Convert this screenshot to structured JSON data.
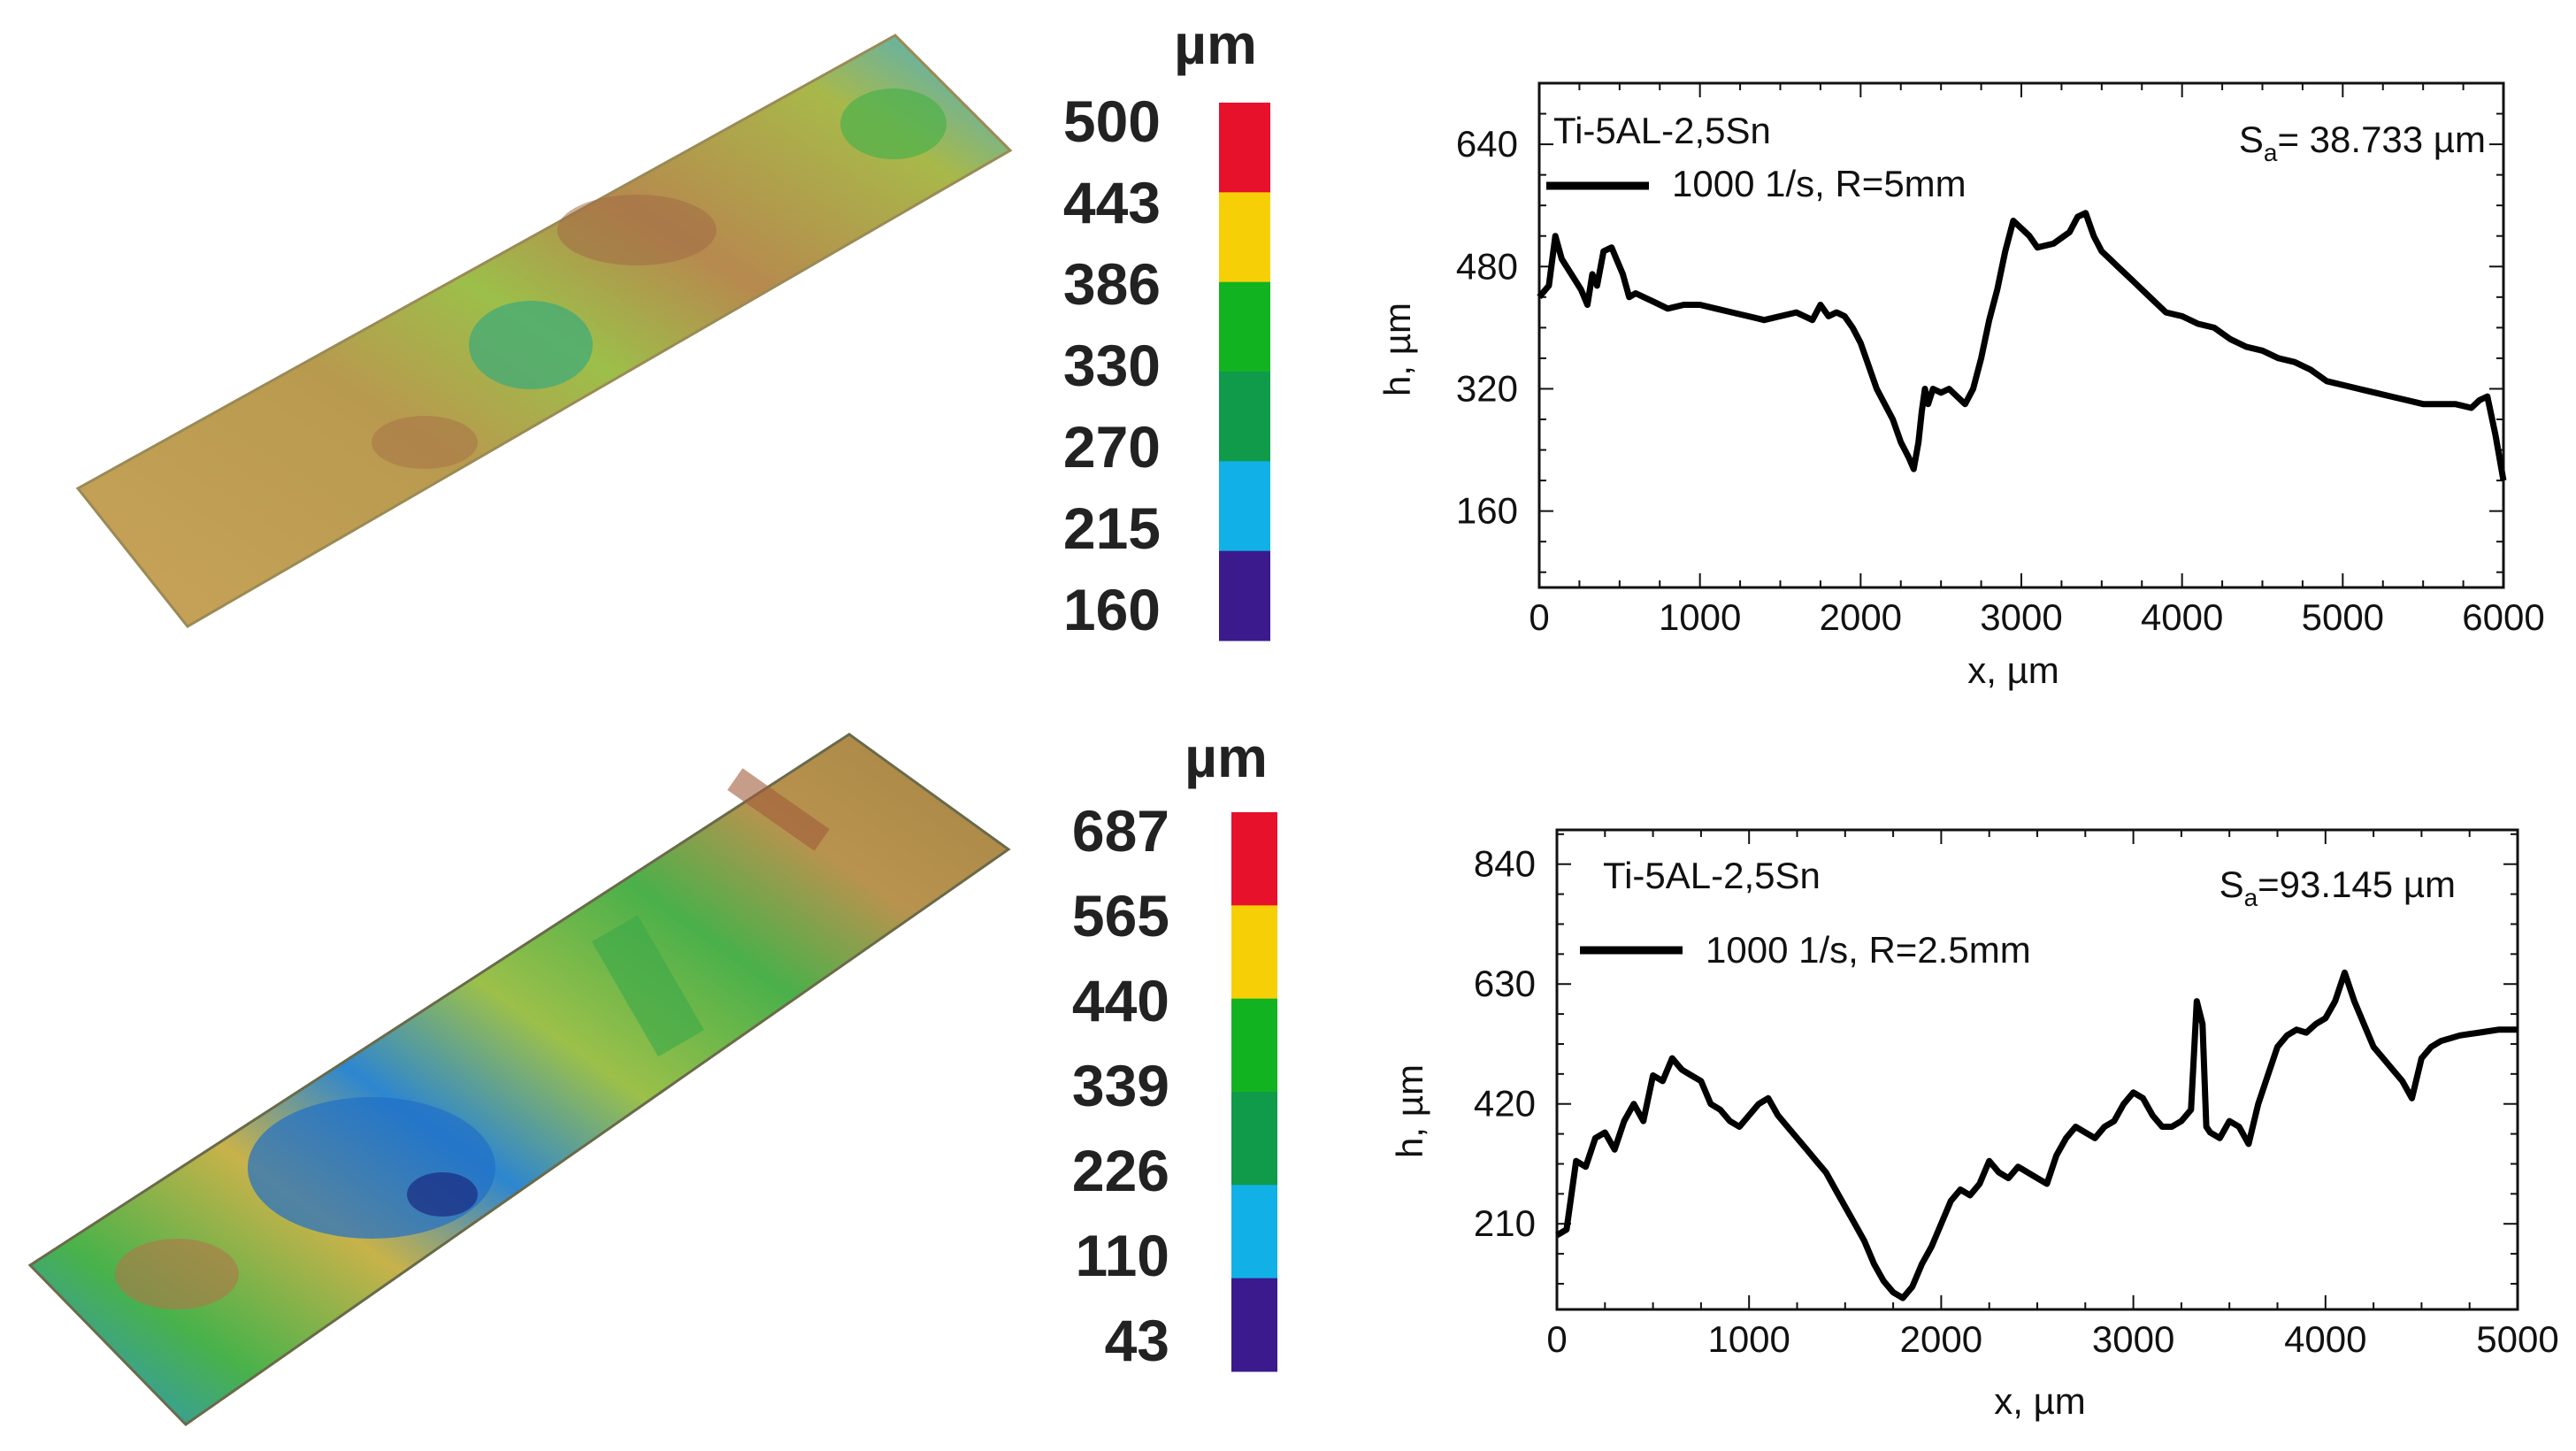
{
  "scales": [
    {
      "unit": "µm",
      "values": [
        "500",
        "443",
        "386",
        "330",
        "270",
        "215",
        "160"
      ],
      "colors": [
        "#e8112b",
        "#f7cf07",
        "#12b321",
        "#0f9b4a",
        "#11b1e8",
        "#3a1a8c"
      ]
    },
    {
      "unit": "µm",
      "values": [
        "687",
        "565",
        "440",
        "339",
        "226",
        "110",
        "43"
      ],
      "colors": [
        "#e8112b",
        "#f7cf07",
        "#12b321",
        "#0f9b4a",
        "#11b1e8",
        "#3a1a8c"
      ]
    }
  ],
  "chart_data": [
    {
      "type": "line",
      "material": "Ti-5AL-2,5Sn",
      "legend": "1000 1/s, R=5mm",
      "sa_prefix": "S",
      "sa_sub": "a",
      "sa_value": "= 38.733 µm",
      "xlabel": "x, µm",
      "ylabel": "h, µm",
      "xlim": [
        0,
        6000
      ],
      "ylim": [
        60,
        720
      ],
      "xticks": [
        0,
        1000,
        2000,
        3000,
        4000,
        5000,
        6000
      ],
      "yticks": [
        160,
        320,
        480,
        640
      ],
      "grid": false,
      "series": [
        {
          "x": [
            0,
            60,
            100,
            140,
            200,
            260,
            300,
            330,
            360,
            400,
            450,
            480,
            520,
            560,
            600,
            700,
            800,
            900,
            1000,
            1100,
            1200,
            1300,
            1400,
            1500,
            1600,
            1700,
            1750,
            1800,
            1850,
            1900,
            1950,
            2000,
            2050,
            2100,
            2150,
            2200,
            2250,
            2300,
            2330,
            2360,
            2380,
            2400,
            2420,
            2450,
            2500,
            2550,
            2600,
            2650,
            2700,
            2750,
            2800,
            2850,
            2900,
            2950,
            3000,
            3050,
            3100,
            3200,
            3300,
            3350,
            3400,
            3450,
            3500,
            3550,
            3600,
            3700,
            3800,
            3900,
            4000,
            4100,
            4200,
            4300,
            4400,
            4500,
            4600,
            4700,
            4800,
            4900,
            5000,
            5100,
            5200,
            5300,
            5400,
            5500,
            5600,
            5700,
            5800,
            5850,
            5900,
            5950,
            6000
          ],
          "y": [
            440,
            455,
            520,
            490,
            470,
            450,
            430,
            470,
            455,
            500,
            505,
            490,
            470,
            440,
            445,
            435,
            425,
            430,
            430,
            425,
            420,
            415,
            410,
            415,
            420,
            410,
            430,
            415,
            420,
            415,
            400,
            380,
            350,
            320,
            300,
            280,
            250,
            230,
            215,
            250,
            290,
            320,
            300,
            320,
            315,
            320,
            310,
            300,
            320,
            360,
            410,
            450,
            500,
            540,
            530,
            520,
            505,
            510,
            525,
            545,
            550,
            520,
            500,
            490,
            480,
            460,
            440,
            420,
            415,
            405,
            400,
            385,
            375,
            370,
            360,
            355,
            345,
            330,
            325,
            320,
            315,
            310,
            305,
            300,
            300,
            300,
            295,
            305,
            310,
            260,
            200
          ]
        }
      ]
    },
    {
      "type": "line",
      "material": "Ti-5AL-2,5Sn",
      "legend": "1000 1/s, R=2.5mm",
      "sa_prefix": "S",
      "sa_sub": "a",
      "sa_value": "=93.145 µm",
      "xlabel": "x, µm",
      "ylabel": "h, µm",
      "xlim": [
        0,
        5000
      ],
      "ylim": [
        60,
        900
      ],
      "xticks": [
        0,
        1000,
        2000,
        3000,
        4000,
        5000
      ],
      "yticks": [
        210,
        420,
        630,
        840
      ],
      "grid": false,
      "series": [
        {
          "x": [
            0,
            50,
            100,
            150,
            200,
            250,
            300,
            350,
            400,
            450,
            500,
            550,
            600,
            650,
            700,
            750,
            800,
            850,
            900,
            950,
            1000,
            1050,
            1100,
            1150,
            1200,
            1250,
            1300,
            1350,
            1400,
            1450,
            1500,
            1550,
            1600,
            1650,
            1700,
            1750,
            1800,
            1850,
            1900,
            1950,
            2000,
            2050,
            2100,
            2150,
            2200,
            2250,
            2300,
            2350,
            2400,
            2450,
            2500,
            2550,
            2600,
            2650,
            2700,
            2750,
            2800,
            2850,
            2900,
            2950,
            3000,
            3050,
            3100,
            3150,
            3200,
            3250,
            3300,
            3330,
            3360,
            3380,
            3400,
            3450,
            3500,
            3550,
            3600,
            3650,
            3700,
            3750,
            3800,
            3850,
            3900,
            3950,
            4000,
            4050,
            4100,
            4150,
            4200,
            4250,
            4300,
            4350,
            4400,
            4450,
            4500,
            4550,
            4600,
            4700,
            4800,
            4900,
            5000
          ],
          "y": [
            190,
            200,
            320,
            310,
            360,
            370,
            340,
            390,
            420,
            390,
            470,
            460,
            500,
            480,
            470,
            460,
            420,
            410,
            390,
            380,
            400,
            420,
            430,
            400,
            380,
            360,
            340,
            320,
            300,
            270,
            240,
            210,
            180,
            140,
            110,
            90,
            80,
            100,
            140,
            170,
            210,
            250,
            270,
            260,
            280,
            320,
            300,
            290,
            310,
            300,
            290,
            280,
            330,
            360,
            380,
            370,
            360,
            380,
            390,
            420,
            440,
            430,
            400,
            380,
            380,
            390,
            410,
            600,
            560,
            380,
            370,
            360,
            390,
            380,
            350,
            420,
            470,
            520,
            540,
            550,
            545,
            560,
            570,
            600,
            650,
            600,
            560,
            520,
            500,
            480,
            460,
            430,
            500,
            520,
            530,
            540,
            545,
            550,
            550
          ]
        }
      ]
    }
  ]
}
